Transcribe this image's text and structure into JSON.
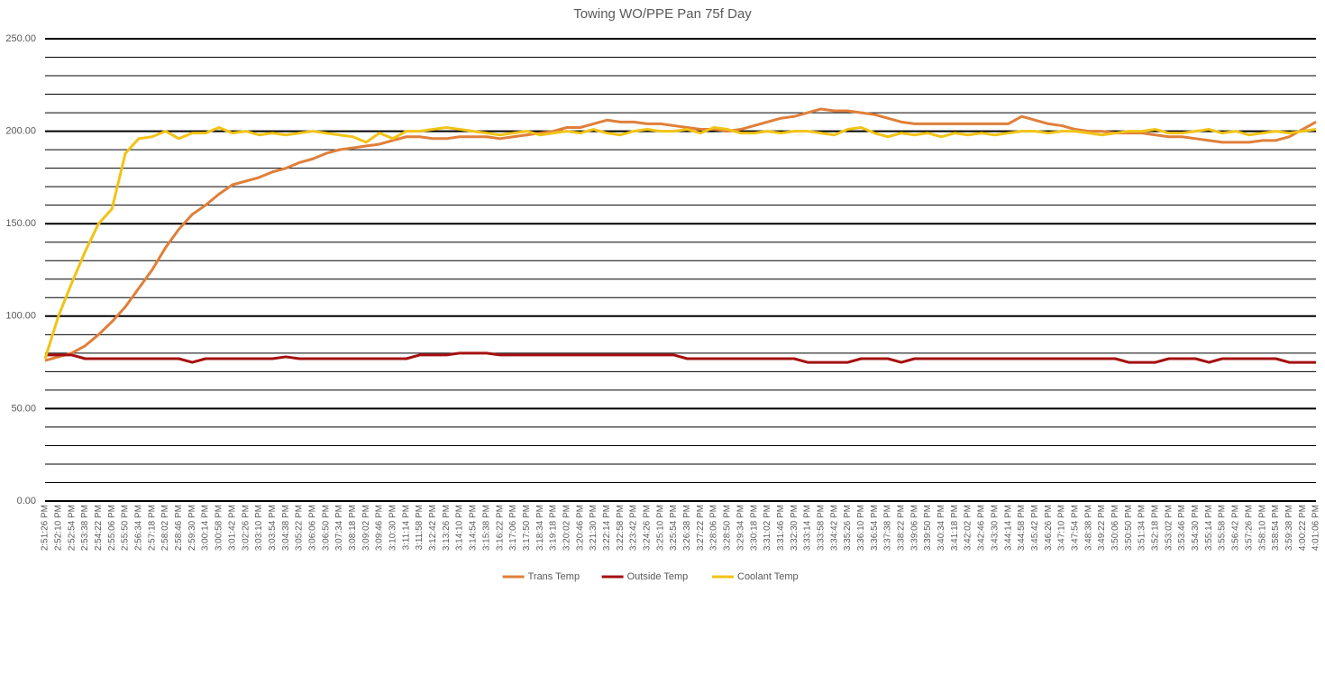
{
  "chart_data": {
    "type": "line",
    "title": "Towing WO/PPE Pan 75f Day",
    "categories": [
      "2:51:26 PM",
      "2:52:10 PM",
      "2:52:54 PM",
      "2:53:38 PM",
      "2:54:22 PM",
      "2:55:06 PM",
      "2:55:50 PM",
      "2:56:34 PM",
      "2:57:18 PM",
      "2:58:02 PM",
      "2:58:46 PM",
      "2:59:30 PM",
      "3:00:14 PM",
      "3:00:58 PM",
      "3:01:42 PM",
      "3:02:26 PM",
      "3:03:10 PM",
      "3:03:54 PM",
      "3:04:38 PM",
      "3:05:22 PM",
      "3:06:06 PM",
      "3:06:50 PM",
      "3:07:34 PM",
      "3:08:18 PM",
      "3:09:02 PM",
      "3:09:46 PM",
      "3:10:30 PM",
      "3:11:14 PM",
      "3:11:58 PM",
      "3:12:42 PM",
      "3:13:26 PM",
      "3:14:10 PM",
      "3:14:54 PM",
      "3:15:38 PM",
      "3:16:22 PM",
      "3:17:06 PM",
      "3:17:50 PM",
      "3:18:34 PM",
      "3:19:18 PM",
      "3:20:02 PM",
      "3:20:46 PM",
      "3:21:30 PM",
      "3:22:14 PM",
      "3:22:58 PM",
      "3:23:42 PM",
      "3:24:26 PM",
      "3:25:10 PM",
      "3:25:54 PM",
      "3:26:38 PM",
      "3:27:22 PM",
      "3:28:06 PM",
      "3:28:50 PM",
      "3:29:34 PM",
      "3:30:18 PM",
      "3:31:02 PM",
      "3:31:46 PM",
      "3:32:30 PM",
      "3:33:14 PM",
      "3:33:58 PM",
      "3:34:42 PM",
      "3:35:26 PM",
      "3:36:10 PM",
      "3:36:54 PM",
      "3:37:38 PM",
      "3:38:22 PM",
      "3:39:06 PM",
      "3:39:50 PM",
      "3:40:34 PM",
      "3:41:18 PM",
      "3:42:02 PM",
      "3:42:46 PM",
      "3:43:30 PM",
      "3:44:14 PM",
      "3:44:58 PM",
      "3:45:42 PM",
      "3:46:26 PM",
      "3:47:10 PM",
      "3:47:54 PM",
      "3:48:38 PM",
      "3:49:22 PM",
      "3:50:06 PM",
      "3:50:50 PM",
      "3:51:34 PM",
      "3:52:18 PM",
      "3:53:02 PM",
      "3:53:46 PM",
      "3:54:30 PM",
      "3:55:14 PM",
      "3:55:58 PM",
      "3:56:42 PM",
      "3:57:26 PM",
      "3:58:10 PM",
      "3:58:54 PM",
      "3:59:38 PM",
      "4:00:22 PM",
      "4:01:06 PM"
    ],
    "series": [
      {
        "name": "Trans Temp",
        "color": "#e07f3a",
        "values": [
          76,
          78,
          80,
          84,
          90,
          97,
          105,
          115,
          125,
          137,
          147,
          155,
          160,
          166,
          171,
          173,
          175,
          178,
          180,
          183,
          185,
          188,
          190,
          191,
          192,
          193,
          195,
          197,
          197,
          196,
          196,
          197,
          197,
          197,
          196,
          197,
          198,
          199,
          200,
          202,
          202,
          204,
          206,
          205,
          205,
          204,
          204,
          203,
          202,
          201,
          201,
          200,
          201,
          203,
          205,
          207,
          208,
          210,
          212,
          211,
          211,
          210,
          209,
          207,
          205,
          204,
          204,
          204,
          204,
          204,
          204,
          204,
          204,
          208,
          206,
          204,
          203,
          201,
          200,
          200,
          199,
          199,
          199,
          198,
          197,
          197,
          196,
          195,
          194,
          194,
          194,
          195,
          195,
          197,
          201,
          205
        ]
      },
      {
        "name": "Outside Temp",
        "color": "#a51010",
        "values": [
          79,
          79,
          79,
          77,
          77,
          77,
          77,
          77,
          77,
          77,
          77,
          75,
          77,
          77,
          77,
          77,
          77,
          77,
          78,
          77,
          77,
          77,
          77,
          77,
          77,
          77,
          77,
          77,
          79,
          79,
          79,
          80,
          80,
          80,
          79,
          79,
          79,
          79,
          79,
          79,
          79,
          79,
          79,
          79,
          79,
          79,
          79,
          79,
          77,
          77,
          77,
          77,
          77,
          77,
          77,
          77,
          77,
          75,
          75,
          75,
          75,
          77,
          77,
          77,
          75,
          77,
          77,
          77,
          77,
          77,
          77,
          77,
          77,
          77,
          77,
          77,
          77,
          77,
          77,
          77,
          77,
          75,
          75,
          75,
          77,
          77,
          77,
          75,
          77,
          77,
          77,
          77,
          77,
          75,
          75,
          75
        ]
      },
      {
        "name": "Coolant Temp",
        "color": "#f2c316",
        "values": [
          77,
          100,
          118,
          135,
          150,
          158,
          188,
          196,
          197,
          200,
          196,
          199,
          199,
          202,
          199,
          200,
          198,
          199,
          198,
          199,
          200,
          199,
          198,
          197,
          194,
          199,
          196,
          200,
          200,
          201,
          202,
          201,
          200,
          199,
          198,
          199,
          200,
          198,
          199,
          200,
          199,
          201,
          199,
          198,
          200,
          201,
          200,
          200,
          201,
          199,
          202,
          201,
          199,
          199,
          200,
          199,
          200,
          200,
          199,
          198,
          201,
          202,
          199,
          197,
          199,
          198,
          199,
          197,
          199,
          198,
          199,
          198,
          199,
          200,
          200,
          199,
          200,
          200,
          199,
          198,
          199,
          200,
          200,
          201,
          199,
          199,
          200,
          201,
          199,
          200,
          198,
          199,
          200,
          199,
          200,
          201
        ]
      }
    ],
    "ylim": [
      0,
      250
    ],
    "yticks": [
      {
        "value": 0,
        "label": "0.00"
      },
      {
        "value": 50,
        "label": "50.00"
      },
      {
        "value": 100,
        "label": "100.00"
      },
      {
        "value": 150,
        "label": "150.00"
      },
      {
        "value": 200,
        "label": "200.00"
      },
      {
        "value": 250,
        "label": "250.00"
      }
    ],
    "minor_yticks": [
      10,
      20,
      30,
      40,
      60,
      70,
      80,
      90,
      110,
      120,
      130,
      140,
      160,
      170,
      180,
      190,
      210,
      220,
      230,
      240
    ],
    "grid": true,
    "legend": "bottom"
  }
}
